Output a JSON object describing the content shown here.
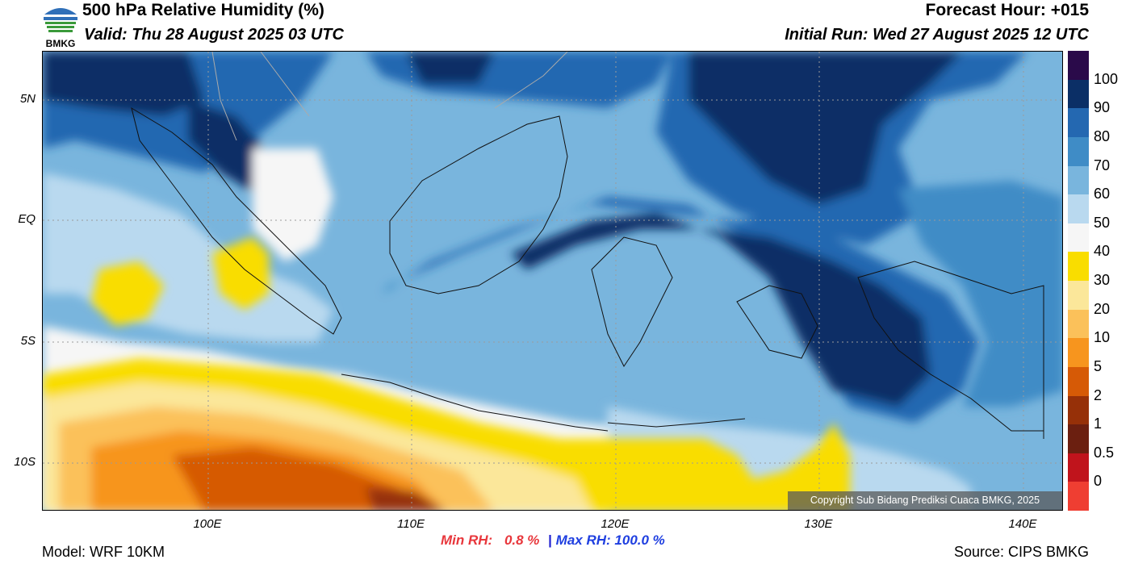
{
  "header": {
    "title": "500 hPa Relative Humidity (%)",
    "valid": "Valid: Thu 28 August 2025 03 UTC",
    "forecast_hour": "Forecast Hour: +015",
    "initial_run": "Initial Run: Wed 27 August 2025 12 UTC",
    "logo_text": "BMKG"
  },
  "map": {
    "lat_labels": [
      "5N",
      "EQ",
      "5S",
      "10S"
    ],
    "lon_labels": [
      "100E",
      "110E",
      "120E",
      "130E",
      "140E"
    ],
    "copyright": "Copyright Sub Bidang Prediksi Cuaca BMKG, 2025"
  },
  "colorbar": {
    "labels": [
      "100",
      "90",
      "80",
      "70",
      "60",
      "50",
      "40",
      "30",
      "20",
      "10",
      "5",
      "2",
      "1",
      "0.5",
      "0"
    ],
    "colors": [
      "#2a0a4a",
      "#0b2f66",
      "#2468b1",
      "#3f8cc6",
      "#79b5dd",
      "#b9d9ef",
      "#f6f6f6",
      "#f9dd00",
      "#fbe79a",
      "#fbc15a",
      "#f7951e",
      "#d65a06",
      "#963008",
      "#6b1f10",
      "#c0141c",
      "#ef3e32"
    ]
  },
  "footer": {
    "model": "Model: WRF 10KM",
    "min_rh_label": "Min RH:",
    "min_rh_value": "0.8 %",
    "separator": "|",
    "max_rh_label": "Max RH:",
    "max_rh_value": "100.0 %",
    "source": "Source: CIPS BMKG"
  }
}
